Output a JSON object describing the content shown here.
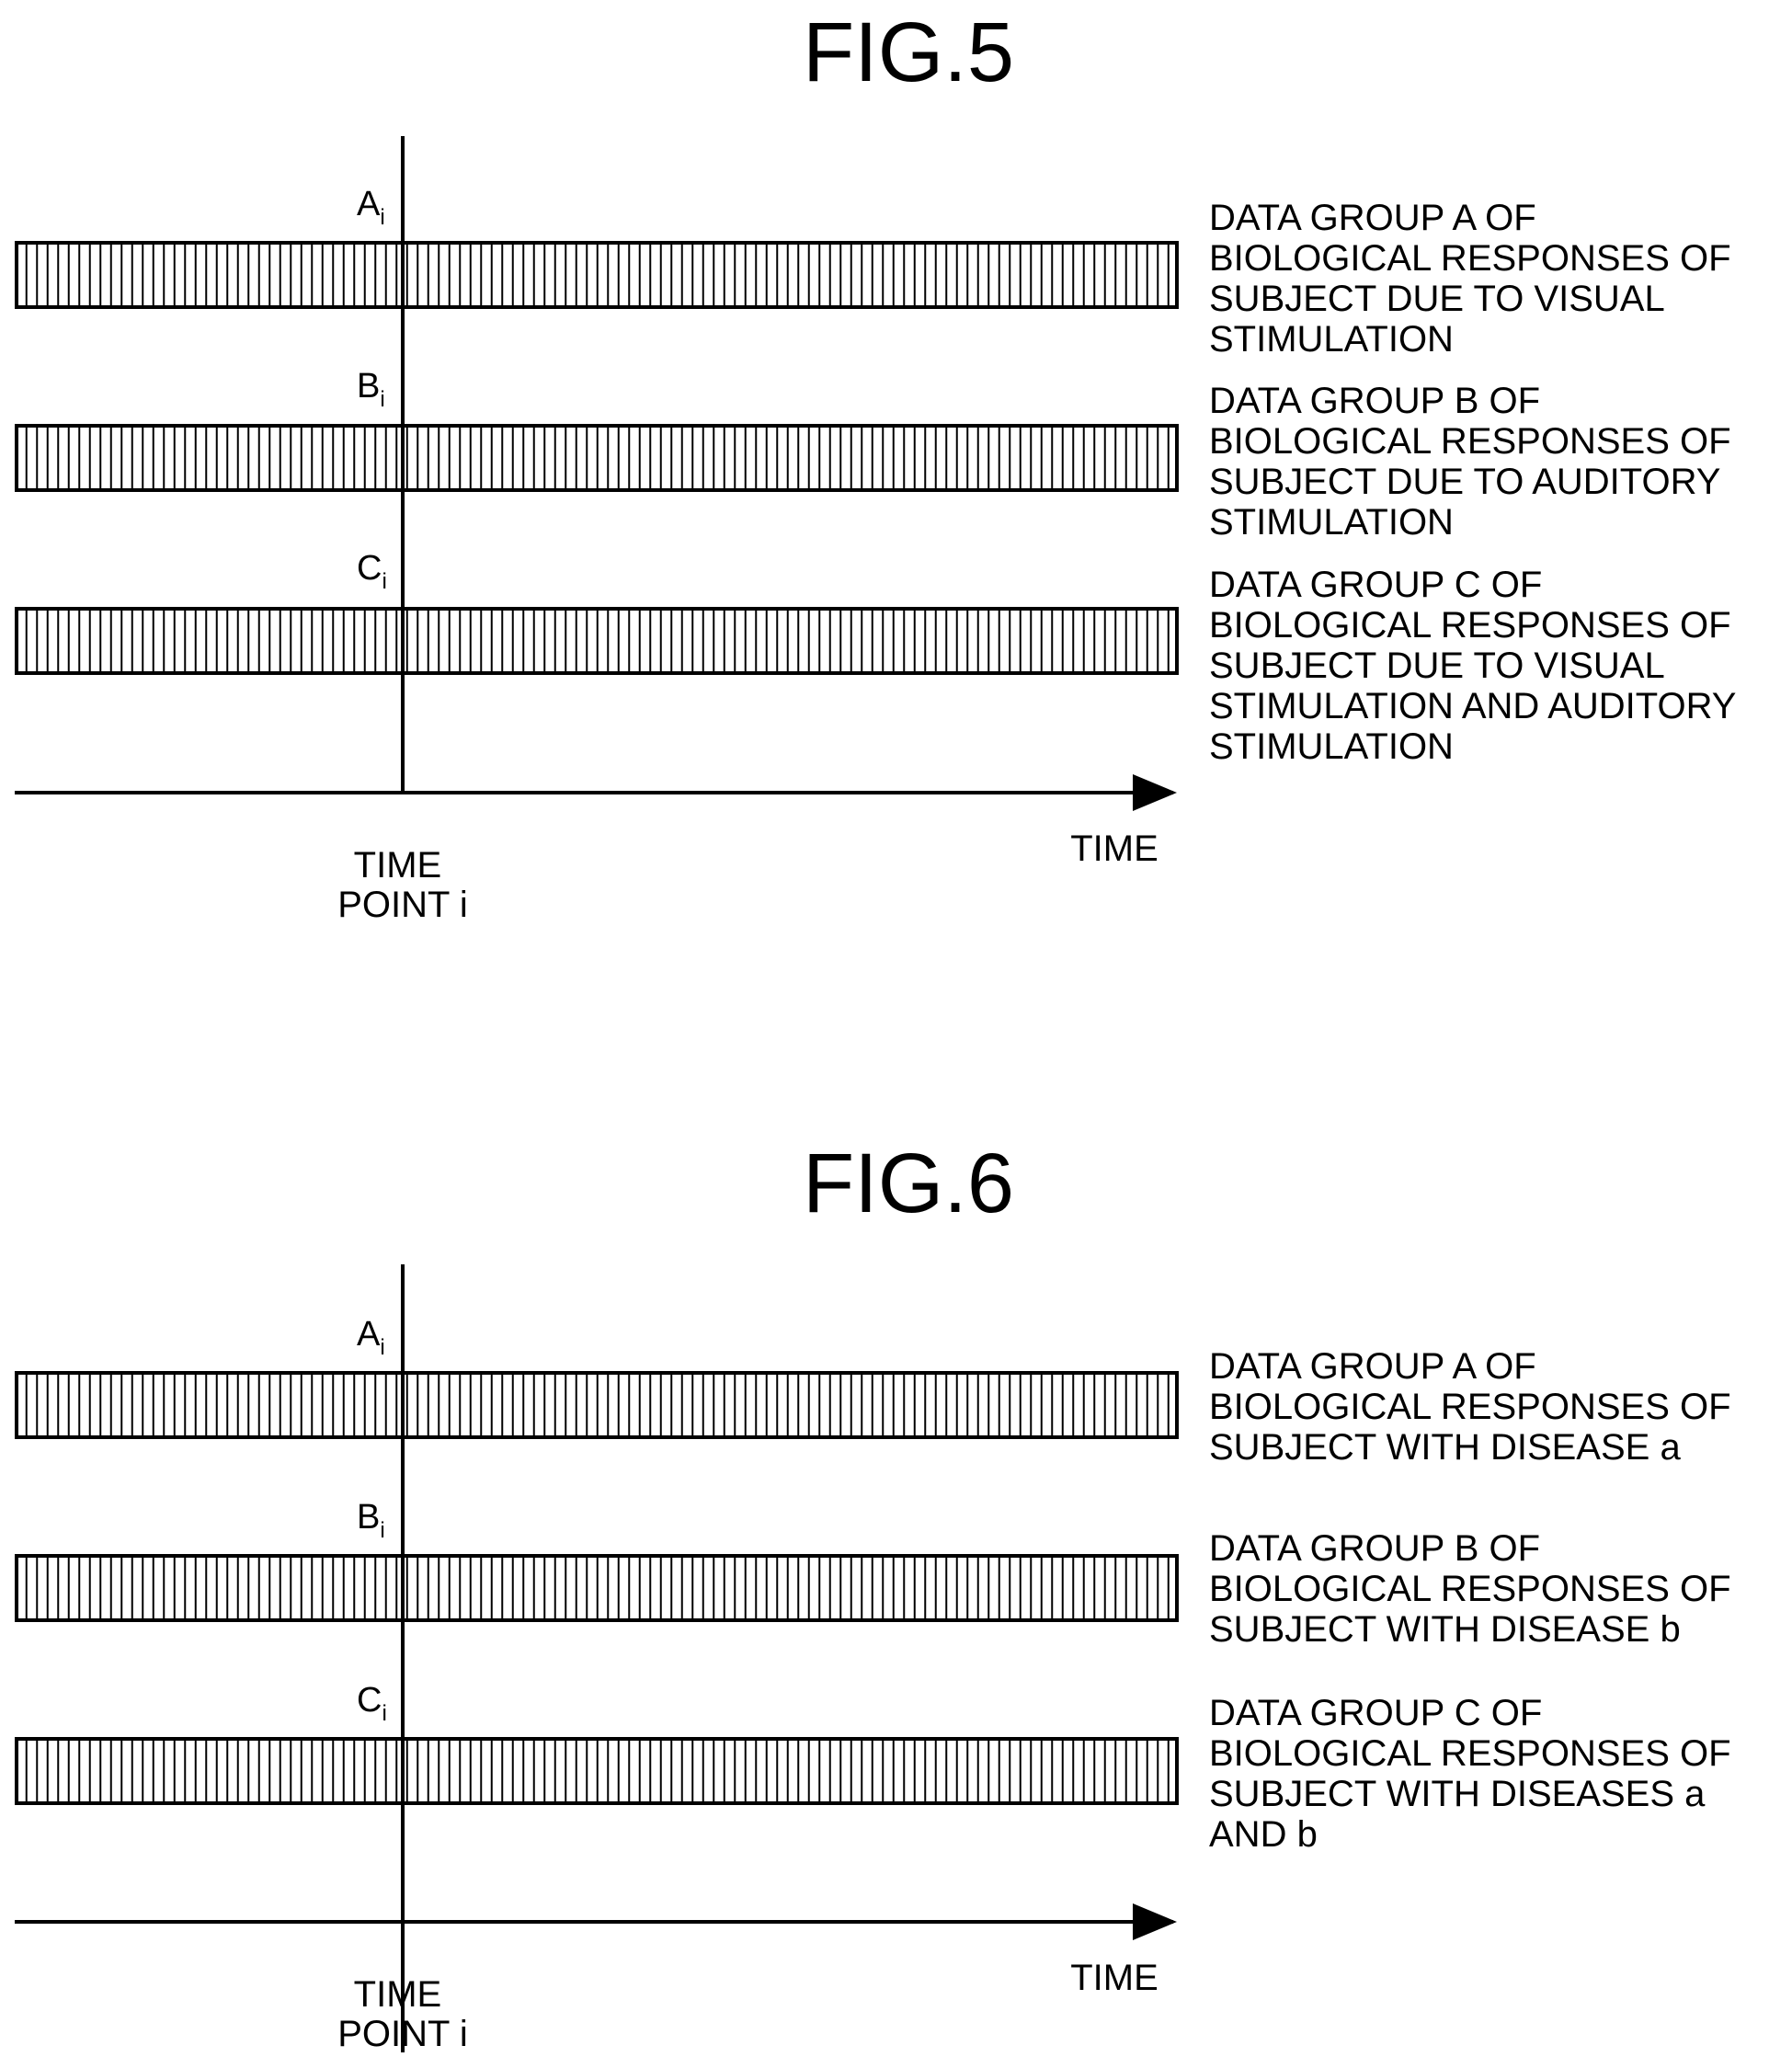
{
  "figures": [
    {
      "title": "FIG.5",
      "groups": [
        {
          "symbol": "A",
          "subscript": "i",
          "description": [
            "DATA GROUP A OF",
            "BIOLOGICAL RESPONSES OF",
            "SUBJECT DUE TO VISUAL",
            "STIMULATION"
          ]
        },
        {
          "symbol": "B",
          "subscript": "i",
          "description": [
            "DATA GROUP B OF",
            "BIOLOGICAL RESPONSES OF",
            "SUBJECT DUE TO AUDITORY",
            "STIMULATION"
          ]
        },
        {
          "symbol": "C",
          "subscript": "i",
          "description": [
            "DATA GROUP C OF",
            "BIOLOGICAL RESPONSES OF",
            "SUBJECT DUE TO VISUAL",
            "STIMULATION AND AUDITORY",
            "STIMULATION"
          ]
        }
      ],
      "time_point_label": [
        "TIME",
        "POINT i"
      ],
      "time_axis_label": "TIME"
    },
    {
      "title": "FIG.6",
      "groups": [
        {
          "symbol": "A",
          "subscript": "i",
          "description": [
            "DATA GROUP A OF",
            "BIOLOGICAL RESPONSES OF",
            "SUBJECT WITH DISEASE a"
          ]
        },
        {
          "symbol": "B",
          "subscript": "i",
          "description": [
            "DATA GROUP B OF",
            "BIOLOGICAL RESPONSES OF",
            "SUBJECT WITH DISEASE b"
          ]
        },
        {
          "symbol": "C",
          "subscript": "i",
          "description": [
            "DATA GROUP C OF",
            "BIOLOGICAL RESPONSES OF",
            "SUBJECT WITH DISEASES a",
            "AND b"
          ]
        }
      ],
      "time_point_label": [
        "TIME",
        "POINT i"
      ],
      "time_axis_label": "TIME"
    }
  ],
  "colors": {
    "ink": "#000000",
    "background": "#ffffff"
  }
}
